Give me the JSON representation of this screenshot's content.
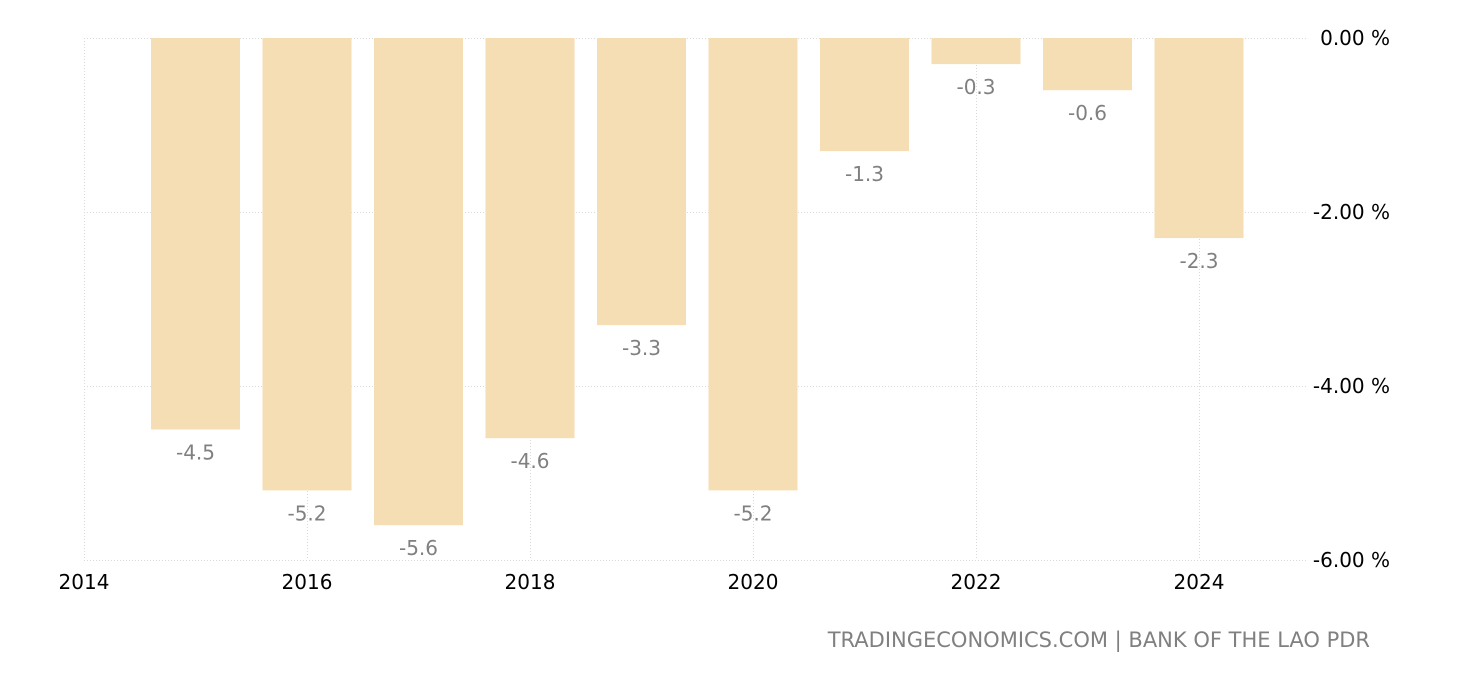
{
  "chart_data": {
    "type": "bar",
    "x": [
      2015,
      2016,
      2017,
      2018,
      2019,
      2020,
      2021,
      2022,
      2023,
      2024
    ],
    "values": [
      -4.5,
      -5.2,
      -5.6,
      -4.6,
      -3.3,
      -5.2,
      -1.3,
      -0.3,
      -0.6,
      -2.3
    ],
    "data_labels": [
      "-4.5",
      "-5.2",
      "-5.6",
      "-4.6",
      "-3.3",
      "-5.2",
      "-1.3",
      "-0.3",
      "-0.6",
      "-2.3"
    ],
    "x_ticks": [
      2014,
      2016,
      2018,
      2020,
      2022,
      2024
    ],
    "x_tick_labels": [
      "2014",
      "2016",
      "2018",
      "2020",
      "2022",
      "2024"
    ],
    "y_ticks": [
      0,
      -2,
      -4,
      -6
    ],
    "y_tick_labels": [
      "0.00 %",
      "-2.00 %",
      "-4.00 %",
      "-6.00 %"
    ],
    "ylim": [
      -6,
      0
    ],
    "xlim": [
      2014,
      2025
    ],
    "bar_color": "#f5deb3",
    "label_color": "#808080",
    "grid": true,
    "y_axis_side": "right",
    "legend": "none"
  },
  "source": "TRADINGECONOMICS.COM | BANK OF THE LAO PDR"
}
